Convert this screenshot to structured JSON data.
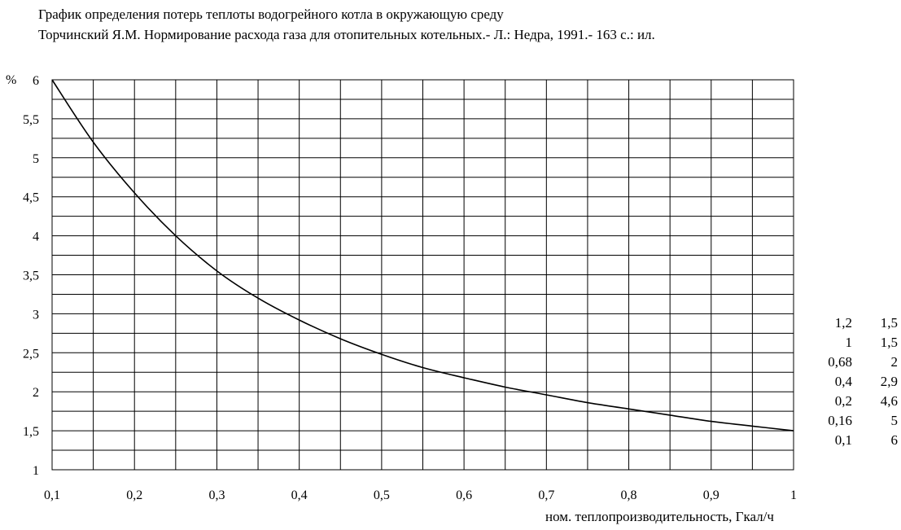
{
  "header": {
    "title": "График определения потерь теплоты водогрейного котла в окружающую среду",
    "source": "Торчинский Я.М. Нормирование расхода газа для отопительных котельных.- Л.: Недра, 1991.- 163 с.: ил."
  },
  "chart_data": {
    "type": "line",
    "title": "График определения потерь теплоты водогрейного котла в окружающую среду",
    "xlabel": "ном. теплопроизводительность, Гкал/ч",
    "ylabel": "%",
    "xlim": [
      0.1,
      1
    ],
    "ylim": [
      1,
      6
    ],
    "x_ticks": [
      "0,1",
      "0,2",
      "0,3",
      "0,4",
      "0,5",
      "0,6",
      "0,7",
      "0,8",
      "0,9",
      "1"
    ],
    "y_ticks": [
      "1",
      "1,5",
      "2",
      "2,5",
      "3",
      "3,5",
      "4",
      "4,5",
      "5",
      "5,5",
      "6"
    ],
    "grid": true,
    "series": [
      {
        "x": [
          0.1,
          0.15,
          0.2,
          0.25,
          0.3,
          0.35,
          0.4,
          0.45,
          0.5,
          0.55,
          0.6,
          0.65,
          0.7,
          0.75,
          0.8,
          0.85,
          0.9,
          0.95,
          1.0
        ],
        "y": [
          6.0,
          5.2,
          4.55,
          4.0,
          3.55,
          3.2,
          2.92,
          2.68,
          2.48,
          2.31,
          2.18,
          2.06,
          1.96,
          1.86,
          1.78,
          1.7,
          1.62,
          1.56,
          1.5
        ]
      }
    ]
  },
  "data_table": {
    "rows": [
      [
        "1,2",
        "1,5"
      ],
      [
        "1",
        "1,5"
      ],
      [
        "0,68",
        "2"
      ],
      [
        "0,4",
        "2,9"
      ],
      [
        "0,2",
        "4,6"
      ],
      [
        "0,16",
        "5"
      ],
      [
        "0,1",
        "6"
      ]
    ]
  }
}
